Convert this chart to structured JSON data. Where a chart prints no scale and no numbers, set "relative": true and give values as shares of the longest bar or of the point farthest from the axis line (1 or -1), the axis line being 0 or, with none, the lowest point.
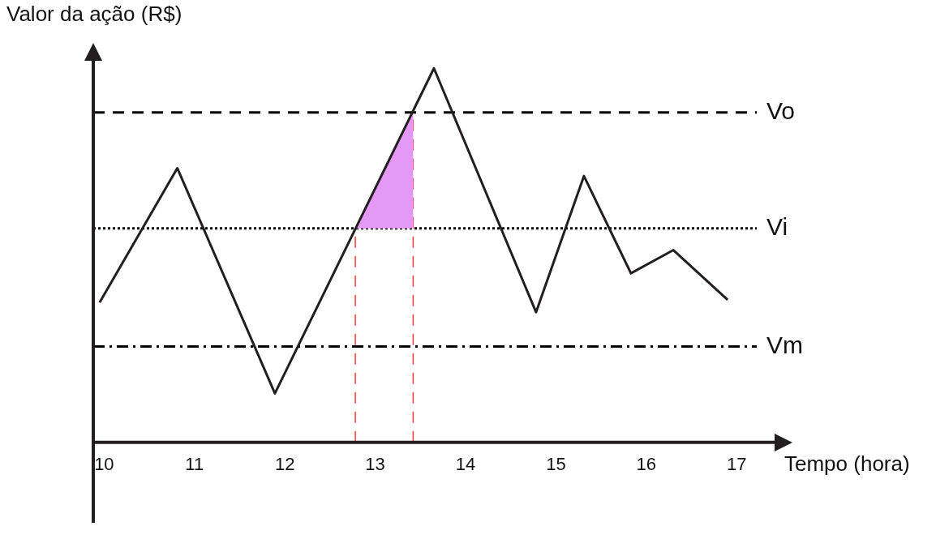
{
  "chart_data": {
    "type": "line",
    "relative": true,
    "xlabel": "Tempo (hora)",
    "ylabel": "Valor da ação (R$)",
    "xlim": [
      9.88,
      17.42
    ],
    "xticks": [
      10,
      11,
      12,
      13,
      14,
      15,
      16,
      17
    ],
    "legend": false,
    "marker": "none",
    "tick_labels": "x",
    "series": [
      {
        "color": "#231f20",
        "x": [
          9.95,
          10.81,
          11.89,
          13.65,
          14.78,
          15.31,
          15.83,
          16.3,
          16.9
        ],
        "values": [
          0.374,
          0.733,
          0.131,
          1,
          0.348,
          0.712,
          0.452,
          0.514,
          0.381
        ]
      },
      {
        "type": "area",
        "color": "#e599f7",
        "x": [
          12.78,
          13.42,
          13.42
        ],
        "values": [
          0.572,
          0.882,
          0.572
        ]
      }
    ],
    "ref_lines": [
      {
        "axis": "y",
        "value": 0.882,
        "label": "Vo",
        "line_style": "dashed",
        "color": "#000000"
      },
      {
        "axis": "y",
        "value": 0.572,
        "label": "Vi",
        "line_style": "dotted",
        "color": "#000000"
      },
      {
        "axis": "y",
        "value": 0.256,
        "label": "Vm",
        "line_style": "dashdot",
        "color": "#000000"
      },
      {
        "axis": "x",
        "value": 12.78,
        "line_style": "dashed",
        "color": "#ff3b3b"
      },
      {
        "axis": "x",
        "value": 13.42,
        "line_style": "dashed",
        "color": "#ff3b3b"
      }
    ]
  }
}
